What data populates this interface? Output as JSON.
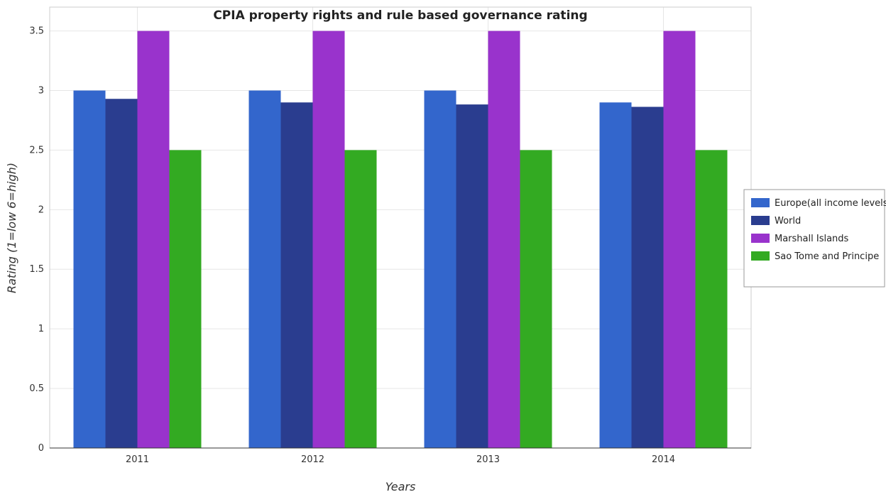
{
  "chart_data": {
    "type": "bar",
    "title": "CPIA property rights and rule based governance rating",
    "xlabel": "Years",
    "ylabel": "Rating (1=low 6=high)",
    "categories": [
      "2011",
      "2012",
      "2013",
      "2014"
    ],
    "ylim": [
      0,
      3.7
    ],
    "yticks": [
      0,
      0.5,
      1,
      1.5,
      2,
      2.5,
      3,
      3.5
    ],
    "ytick_labels": [
      "0",
      "0.5",
      "1",
      "1.5",
      "2",
      "2.5",
      "3",
      "3.5"
    ],
    "grid": true,
    "legend_position": "right",
    "series": [
      {
        "name": "Europe(all income levels)",
        "color": "#3366cc",
        "values": [
          3.0,
          3.0,
          3.0,
          2.9
        ]
      },
      {
        "name": "World",
        "color": "#2a3d8f",
        "values": [
          2.93,
          2.9,
          2.883,
          2.863
        ]
      },
      {
        "name": "Marshall Islands",
        "color": "#9933cc",
        "values": [
          3.5,
          3.5,
          3.5,
          3.5
        ]
      },
      {
        "name": "Sao Tome and Principe",
        "color": "#33aa22",
        "values": [
          2.5,
          2.5,
          2.5,
          2.5
        ]
      }
    ]
  }
}
